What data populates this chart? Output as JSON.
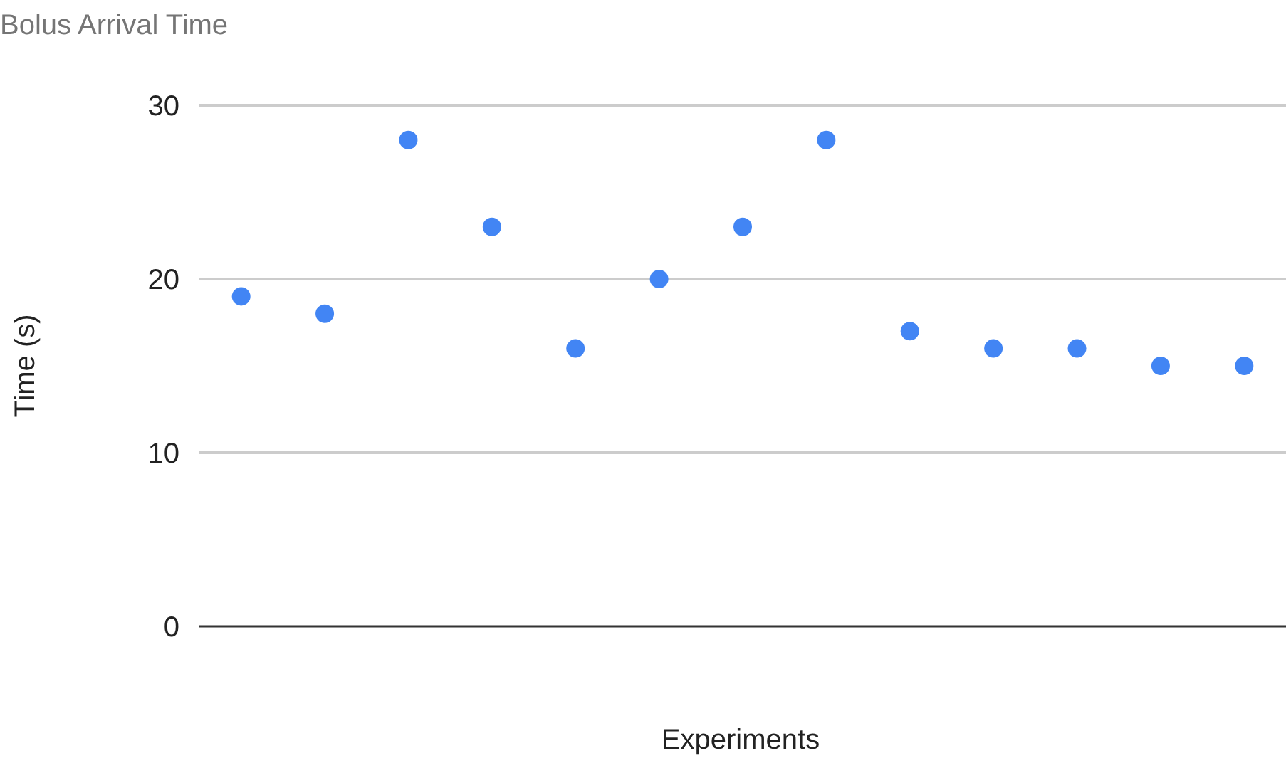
{
  "chart_data": {
    "type": "scatter",
    "title": "Bolus Arrival Time",
    "xlabel": "Experiments",
    "ylabel": "Time (s)",
    "categories": [
      null,
      null,
      null,
      null,
      null,
      null,
      null,
      null,
      null,
      null,
      null,
      null,
      null
    ],
    "series": [
      {
        "color": "#4285f4",
        "values": [
          19,
          18,
          28,
          23,
          16,
          20,
          23,
          28,
          17,
          16,
          16,
          15,
          15
        ]
      }
    ],
    "ylim": [
      0,
      30
    ],
    "yticks": [
      0,
      10,
      20,
      30
    ],
    "grid": "y",
    "marker": "circle"
  }
}
